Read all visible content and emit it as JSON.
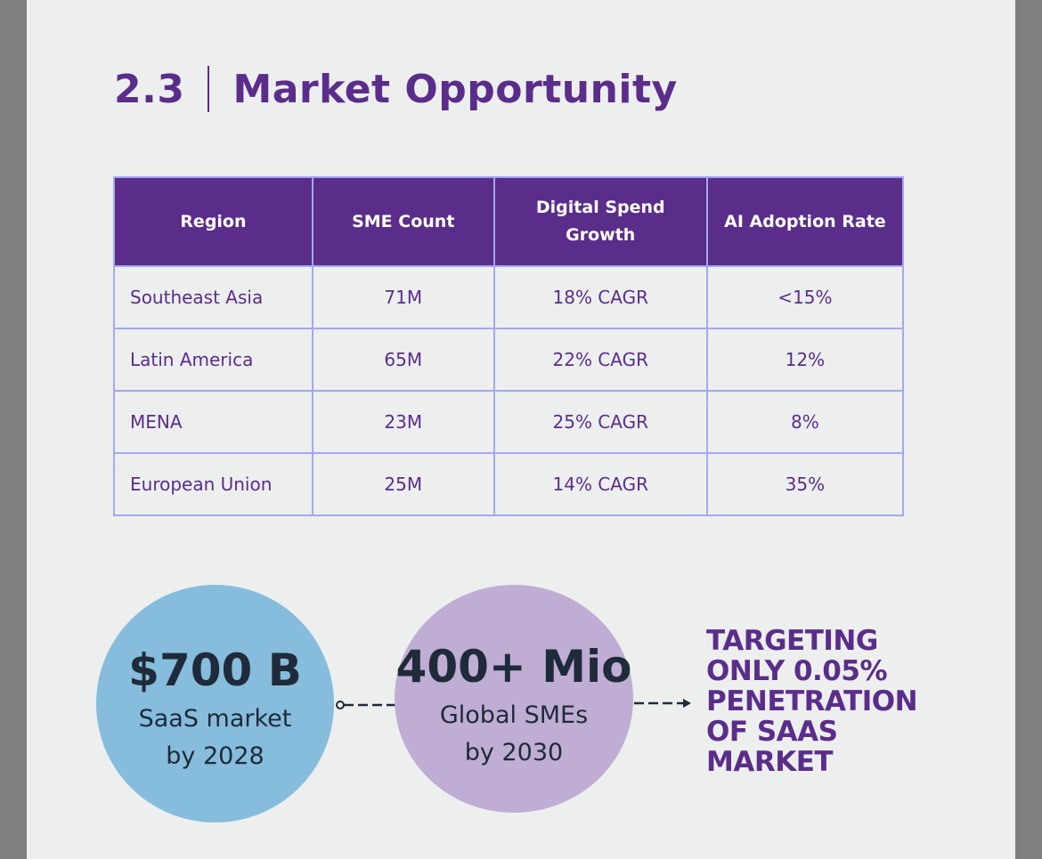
{
  "section": {
    "number": "2.3",
    "title": "Market Opportunity"
  },
  "table": {
    "headers": [
      "Region",
      "SME Count",
      "Digital Spend Growth",
      "AI Adoption Rate"
    ],
    "rows": [
      [
        "Southeast Asia",
        "71M",
        "18% CAGR",
        "<15%"
      ],
      [
        "Latin America",
        "65M",
        "22% CAGR",
        "12%"
      ],
      [
        "MENA",
        "23M",
        "25% CAGR",
        "8%"
      ],
      [
        "European Union",
        "25M",
        "14% CAGR",
        "35%"
      ]
    ]
  },
  "stats": [
    {
      "value": "$700 B",
      "line1": "SaaS market",
      "line2": "by 2028"
    },
    {
      "value": "400+ Mio",
      "line1": "Global SMEs",
      "line2": "by 2030"
    }
  ],
  "target": {
    "lines": [
      "TARGETING",
      "ONLY 0.05%",
      "PENETRATION",
      "OF SAAS",
      "MARKET"
    ]
  },
  "colors": {
    "brand_purple": "#5b2d8a",
    "table_border": "#a3a8f0",
    "circle_blue": "#86bcdc",
    "circle_lilac": "#bfadd4",
    "page_bg": "#ecefee"
  }
}
